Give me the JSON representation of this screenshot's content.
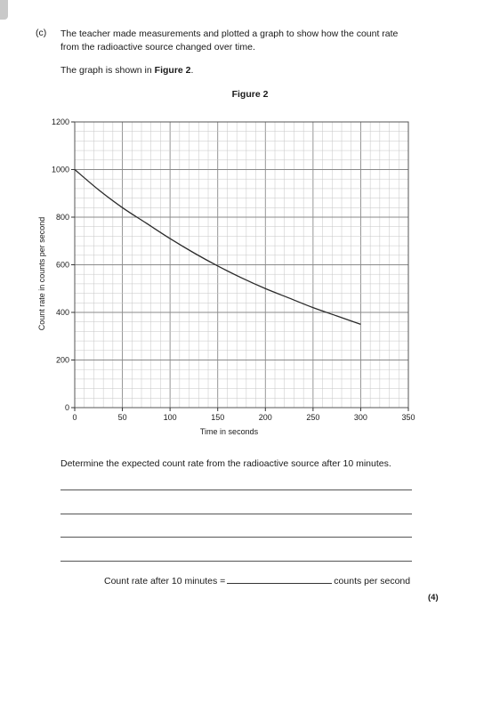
{
  "question": {
    "label": "(c)",
    "text_lines": [
      "The teacher made measurements and plotted a graph to show how the count rate",
      "from the radioactive source changed over time."
    ],
    "shown_prefix": "The graph is shown in ",
    "shown_ref": "Figure 2",
    "shown_suffix": "."
  },
  "figure_title": "Figure 2",
  "chart_data": {
    "type": "line",
    "title": "Figure 2",
    "xlabel": "Time in seconds",
    "ylabel": "Count rate in counts per second",
    "xlim": [
      0,
      350
    ],
    "ylim": [
      0,
      1200
    ],
    "x_ticks": [
      0,
      50,
      100,
      150,
      200,
      250,
      300,
      350
    ],
    "y_ticks": [
      0,
      200,
      400,
      600,
      800,
      1000,
      1200
    ],
    "grid": true,
    "series": [
      {
        "x": [
          0,
          25,
          50,
          75,
          100,
          125,
          150,
          175,
          200,
          225,
          250,
          275,
          300
        ],
        "values": [
          1000,
          915,
          840,
          775,
          710,
          650,
          595,
          545,
          500,
          460,
          420,
          385,
          350
        ]
      }
    ]
  },
  "prompt": "Determine the expected count rate from the radioactive source after 10 minutes.",
  "answer": {
    "label": "Count rate after 10 minutes =",
    "units": "counts per second"
  },
  "marks": "(4)"
}
